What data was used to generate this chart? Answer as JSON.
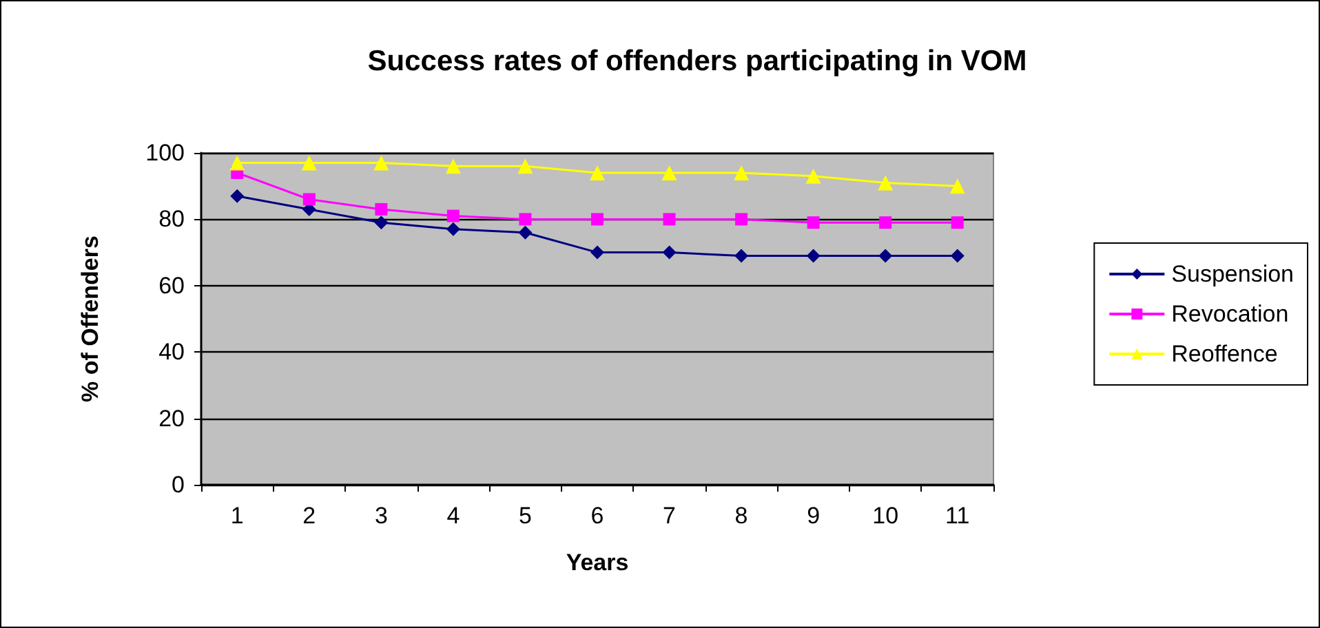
{
  "chart_data": {
    "type": "line",
    "title": "Success rates of offenders participating in VOM",
    "xlabel": "Years",
    "ylabel": "% of Offenders",
    "categories": [
      "1",
      "2",
      "3",
      "4",
      "5",
      "6",
      "7",
      "8",
      "9",
      "10",
      "11"
    ],
    "series": [
      {
        "name": "Suspension",
        "color": "#000080",
        "marker": "diamond",
        "values": [
          87,
          83,
          79,
          77,
          76,
          70,
          70,
          69,
          69,
          69,
          69
        ]
      },
      {
        "name": "Revocation",
        "color": "#ff00ff",
        "marker": "square",
        "values": [
          94,
          86,
          83,
          81,
          80,
          80,
          80,
          80,
          79,
          79,
          79
        ]
      },
      {
        "name": "Reoffence",
        "color": "#ffff00",
        "marker": "triangle",
        "values": [
          97,
          97,
          97,
          96,
          96,
          94,
          94,
          94,
          93,
          91,
          90
        ]
      }
    ],
    "ylim": [
      0,
      100
    ],
    "yticks": [
      0,
      20,
      40,
      60,
      80,
      100
    ],
    "grid": "y",
    "legend": "right"
  }
}
